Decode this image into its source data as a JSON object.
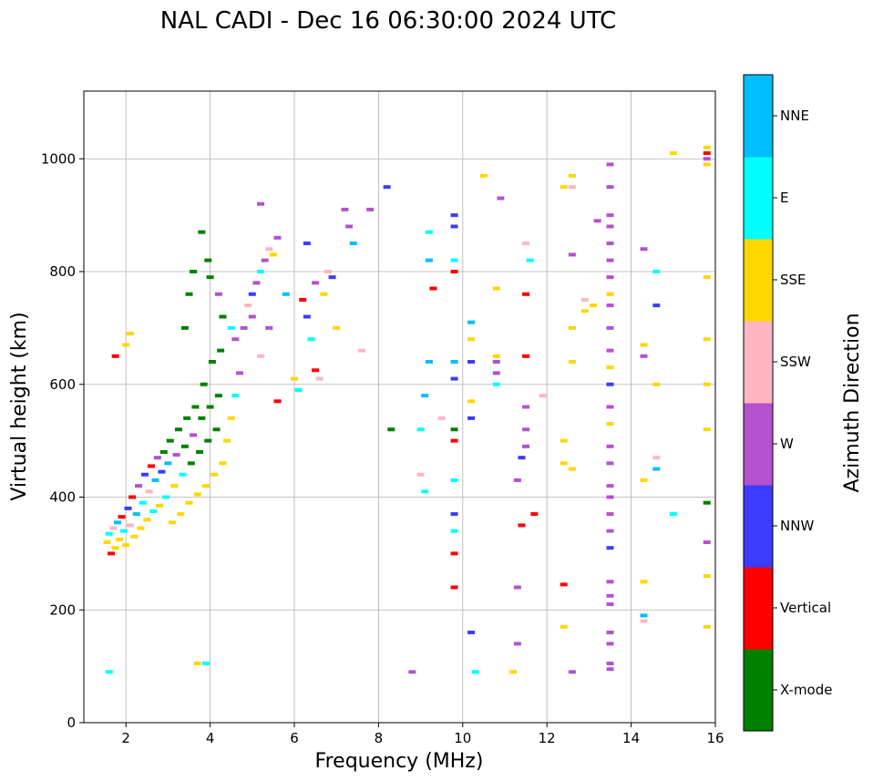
{
  "chart_data": {
    "type": "scatter",
    "title": "NAL CADI - Dec 16 06:30:00 2024 UTC",
    "xlabel": "Frequency (MHz)",
    "ylabel": "Virtual height (km)",
    "xlim": [
      1,
      16
    ],
    "ylim": [
      0,
      1120
    ],
    "xticks": [
      "2",
      "4",
      "6",
      "8",
      "10",
      "12",
      "14",
      "16"
    ],
    "yticks": [
      "0",
      "200",
      "400",
      "600",
      "800",
      "1000"
    ],
    "grid": true,
    "colorbar": {
      "label": "Azimuth Direction",
      "categories": [
        {
          "name": "X-mode",
          "color": "#008000"
        },
        {
          "name": "Vertical",
          "color": "#ff0000"
        },
        {
          "name": "NNW",
          "color": "#3c3cff"
        },
        {
          "name": "W",
          "color": "#b452cd"
        },
        {
          "name": "SSW",
          "color": "#ffb6c1"
        },
        {
          "name": "SSE",
          "color": "#ffd700"
        },
        {
          "name": "E",
          "color": "#00ffff"
        },
        {
          "name": "NNE",
          "color": "#00bfff"
        }
      ]
    },
    "points": [
      [
        1.55,
        320,
        5
      ],
      [
        1.6,
        335,
        6
      ],
      [
        1.65,
        300,
        1
      ],
      [
        1.7,
        345,
        4
      ],
      [
        1.75,
        310,
        5
      ],
      [
        1.8,
        355,
        7
      ],
      [
        1.85,
        325,
        5
      ],
      [
        1.9,
        365,
        1
      ],
      [
        1.95,
        340,
        6
      ],
      [
        2.0,
        315,
        5
      ],
      [
        2.05,
        380,
        2
      ],
      [
        2.1,
        350,
        4
      ],
      [
        2.15,
        400,
        1
      ],
      [
        2.2,
        330,
        5
      ],
      [
        2.25,
        370,
        7
      ],
      [
        2.3,
        420,
        3
      ],
      [
        2.35,
        345,
        5
      ],
      [
        2.4,
        390,
        6
      ],
      [
        2.45,
        440,
        2
      ],
      [
        2.5,
        360,
        5
      ],
      [
        2.55,
        410,
        4
      ],
      [
        2.6,
        455,
        1
      ],
      [
        2.65,
        375,
        6
      ],
      [
        2.7,
        430,
        7
      ],
      [
        2.75,
        470,
        3
      ],
      [
        2.8,
        385,
        5
      ],
      [
        2.85,
        445,
        2
      ],
      [
        2.9,
        480,
        0
      ],
      [
        2.95,
        400,
        6
      ],
      [
        3.0,
        460,
        7
      ],
      [
        3.05,
        500,
        0
      ],
      [
        3.1,
        355,
        5
      ],
      [
        3.15,
        420,
        5
      ],
      [
        3.2,
        475,
        3
      ],
      [
        3.25,
        520,
        0
      ],
      [
        3.3,
        370,
        5
      ],
      [
        3.35,
        440,
        6
      ],
      [
        3.4,
        490,
        0
      ],
      [
        3.45,
        540,
        0
      ],
      [
        3.5,
        390,
        5
      ],
      [
        3.55,
        460,
        0
      ],
      [
        3.6,
        510,
        3
      ],
      [
        3.65,
        560,
        0
      ],
      [
        3.7,
        405,
        5
      ],
      [
        3.75,
        480,
        0
      ],
      [
        3.8,
        540,
        0
      ],
      [
        3.85,
        600,
        0
      ],
      [
        3.9,
        420,
        5
      ],
      [
        3.95,
        500,
        0
      ],
      [
        4.0,
        560,
        0
      ],
      [
        4.05,
        640,
        0
      ],
      [
        4.1,
        440,
        5
      ],
      [
        4.15,
        520,
        0
      ],
      [
        4.2,
        580,
        0
      ],
      [
        4.25,
        660,
        0
      ],
      [
        4.3,
        460,
        5
      ],
      [
        4.4,
        500,
        5
      ],
      [
        4.5,
        540,
        5
      ],
      [
        4.6,
        580,
        6
      ],
      [
        4.7,
        620,
        3
      ],
      [
        3.4,
        700,
        0
      ],
      [
        3.5,
        760,
        0
      ],
      [
        3.6,
        800,
        0
      ],
      [
        3.8,
        870,
        0
      ],
      [
        3.95,
        820,
        0
      ],
      [
        4.0,
        790,
        0
      ],
      [
        4.2,
        760,
        3
      ],
      [
        4.3,
        720,
        0
      ],
      [
        4.5,
        700,
        6
      ],
      [
        4.6,
        680,
        3
      ],
      [
        4.8,
        700,
        3
      ],
      [
        4.9,
        740,
        4
      ],
      [
        5.0,
        760,
        2
      ],
      [
        5.1,
        780,
        3
      ],
      [
        5.2,
        800,
        6
      ],
      [
        5.3,
        820,
        3
      ],
      [
        5.4,
        840,
        4
      ],
      [
        5.5,
        830,
        5
      ],
      [
        5.6,
        860,
        3
      ],
      [
        5.8,
        760,
        7
      ],
      [
        5.0,
        720,
        3
      ],
      [
        5.2,
        650,
        4
      ],
      [
        5.4,
        700,
        3
      ],
      [
        5.6,
        570,
        1
      ],
      [
        6.0,
        610,
        5
      ],
      [
        6.1,
        590,
        6
      ],
      [
        6.2,
        750,
        1
      ],
      [
        6.3,
        720,
        2
      ],
      [
        6.4,
        680,
        6
      ],
      [
        6.5,
        780,
        3
      ],
      [
        6.5,
        625,
        1
      ],
      [
        6.6,
        610,
        4
      ],
      [
        6.7,
        760,
        5
      ],
      [
        6.8,
        800,
        4
      ],
      [
        6.9,
        790,
        2
      ],
      [
        7.0,
        700,
        5
      ],
      [
        7.2,
        910,
        3
      ],
      [
        7.3,
        880,
        3
      ],
      [
        7.4,
        850,
        7
      ],
      [
        7.6,
        660,
        4
      ],
      [
        7.8,
        910,
        3
      ],
      [
        8.2,
        950,
        2
      ],
      [
        8.3,
        520,
        0
      ],
      [
        8.8,
        90,
        3
      ],
      [
        9.0,
        520,
        6
      ],
      [
        9.1,
        580,
        7
      ],
      [
        9.2,
        640,
        7
      ],
      [
        9.3,
        770,
        1
      ],
      [
        9.0,
        440,
        4
      ],
      [
        9.1,
        410,
        6
      ],
      [
        9.2,
        870,
        6
      ],
      [
        9.2,
        820,
        7
      ],
      [
        9.5,
        540,
        4
      ],
      [
        9.8,
        300,
        1
      ],
      [
        9.8,
        340,
        6
      ],
      [
        9.8,
        370,
        2
      ],
      [
        9.8,
        430,
        6
      ],
      [
        9.8,
        500,
        1
      ],
      [
        9.8,
        520,
        0
      ],
      [
        9.8,
        610,
        2
      ],
      [
        9.8,
        640,
        7
      ],
      [
        9.8,
        800,
        1
      ],
      [
        9.8,
        820,
        6
      ],
      [
        9.8,
        880,
        2
      ],
      [
        9.8,
        900,
        2
      ],
      [
        9.8,
        240,
        1
      ],
      [
        10.2,
        160,
        2
      ],
      [
        10.2,
        540,
        2
      ],
      [
        10.2,
        570,
        5
      ],
      [
        10.2,
        640,
        2
      ],
      [
        10.2,
        680,
        5
      ],
      [
        10.2,
        710,
        7
      ],
      [
        10.3,
        90,
        6
      ],
      [
        10.5,
        970,
        5
      ],
      [
        10.8,
        600,
        6
      ],
      [
        10.8,
        620,
        3
      ],
      [
        10.8,
        640,
        3
      ],
      [
        10.8,
        650,
        5
      ],
      [
        10.8,
        770,
        5
      ],
      [
        10.9,
        930,
        3
      ],
      [
        11.2,
        90,
        5
      ],
      [
        11.3,
        140,
        3
      ],
      [
        11.3,
        240,
        3
      ],
      [
        11.3,
        430,
        3
      ],
      [
        11.4,
        350,
        1
      ],
      [
        11.4,
        470,
        2
      ],
      [
        11.5,
        490,
        3
      ],
      [
        11.5,
        520,
        3
      ],
      [
        11.5,
        560,
        3
      ],
      [
        11.5,
        650,
        1
      ],
      [
        11.5,
        760,
        1
      ],
      [
        11.5,
        850,
        4
      ],
      [
        11.6,
        820,
        6
      ],
      [
        11.7,
        370,
        1
      ],
      [
        11.9,
        580,
        4
      ],
      [
        12.4,
        170,
        5
      ],
      [
        12.4,
        245,
        1
      ],
      [
        12.4,
        460,
        5
      ],
      [
        12.4,
        500,
        5
      ],
      [
        12.4,
        950,
        5
      ],
      [
        12.6,
        90,
        3
      ],
      [
        12.6,
        450,
        5
      ],
      [
        12.6,
        640,
        5
      ],
      [
        12.6,
        700,
        5
      ],
      [
        12.6,
        830,
        3
      ],
      [
        12.6,
        950,
        4
      ],
      [
        12.6,
        970,
        5
      ],
      [
        12.9,
        730,
        5
      ],
      [
        12.9,
        750,
        4
      ],
      [
        13.1,
        740,
        5
      ],
      [
        13.2,
        890,
        3
      ],
      [
        13.5,
        95,
        3
      ],
      [
        13.5,
        105,
        3
      ],
      [
        13.5,
        140,
        3
      ],
      [
        13.5,
        160,
        3
      ],
      [
        13.5,
        210,
        3
      ],
      [
        13.5,
        225,
        3
      ],
      [
        13.5,
        250,
        3
      ],
      [
        13.5,
        310,
        2
      ],
      [
        13.5,
        340,
        3
      ],
      [
        13.5,
        370,
        3
      ],
      [
        13.5,
        400,
        3
      ],
      [
        13.5,
        420,
        3
      ],
      [
        13.5,
        460,
        3
      ],
      [
        13.5,
        490,
        3
      ],
      [
        13.5,
        530,
        5
      ],
      [
        13.5,
        560,
        3
      ],
      [
        13.5,
        600,
        2
      ],
      [
        13.5,
        630,
        5
      ],
      [
        13.5,
        660,
        3
      ],
      [
        13.5,
        700,
        3
      ],
      [
        13.5,
        740,
        3
      ],
      [
        13.5,
        760,
        5
      ],
      [
        13.5,
        790,
        3
      ],
      [
        13.5,
        820,
        3
      ],
      [
        13.5,
        850,
        3
      ],
      [
        13.5,
        880,
        3
      ],
      [
        13.5,
        900,
        3
      ],
      [
        13.5,
        950,
        3
      ],
      [
        13.5,
        990,
        3
      ],
      [
        14.3,
        180,
        4
      ],
      [
        14.3,
        190,
        7
      ],
      [
        14.3,
        250,
        5
      ],
      [
        14.3,
        430,
        5
      ],
      [
        14.3,
        650,
        3
      ],
      [
        14.3,
        670,
        5
      ],
      [
        14.3,
        840,
        3
      ],
      [
        14.6,
        450,
        7
      ],
      [
        14.6,
        470,
        4
      ],
      [
        14.6,
        600,
        5
      ],
      [
        14.6,
        740,
        2
      ],
      [
        14.6,
        800,
        6
      ],
      [
        15.0,
        370,
        6
      ],
      [
        15.0,
        1010,
        5
      ],
      [
        15.8,
        170,
        5
      ],
      [
        15.8,
        260,
        5
      ],
      [
        15.8,
        320,
        3
      ],
      [
        15.8,
        390,
        0
      ],
      [
        15.8,
        520,
        5
      ],
      [
        15.8,
        600,
        5
      ],
      [
        15.8,
        680,
        5
      ],
      [
        15.8,
        790,
        5
      ],
      [
        15.8,
        990,
        5
      ],
      [
        15.8,
        1000,
        3
      ],
      [
        15.8,
        1010,
        1
      ],
      [
        15.8,
        1020,
        5
      ],
      [
        1.6,
        90,
        6
      ],
      [
        3.7,
        105,
        5
      ],
      [
        3.9,
        105,
        6
      ],
      [
        1.75,
        650,
        1
      ],
      [
        2.0,
        670,
        5
      ],
      [
        2.1,
        690,
        5
      ],
      [
        5.2,
        920,
        3
      ],
      [
        6.3,
        850,
        2
      ]
    ]
  }
}
